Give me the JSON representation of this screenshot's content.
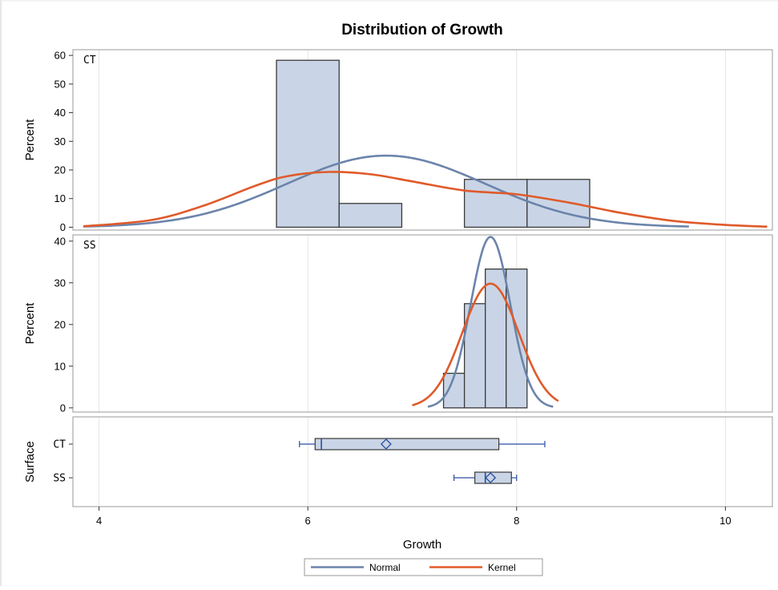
{
  "chart_data": {
    "type": "histogram",
    "title": "Distribution of Growth",
    "xlabel": "Growth",
    "xlim": [
      3.75,
      10.45
    ],
    "x_ticks": [
      4,
      6,
      8,
      10
    ],
    "grid": true,
    "colors": {
      "bar_fill": "#c9d5e6",
      "bar_stroke": "#3a3a3a",
      "normal": "#6b84ab",
      "kernel": "#e05a2a",
      "box_whisker": "#2a4fa0",
      "grid": "#e4e4e4",
      "frame": "#9a9a9a"
    },
    "panels": [
      {
        "label": "CT",
        "ylabel": "Percent",
        "ylim": [
          -1,
          62
        ],
        "y_ticks": [
          0,
          10,
          20,
          30,
          40,
          50,
          60
        ],
        "bins": [
          {
            "x0": 5.7,
            "x1": 6.3,
            "percent": 58.3
          },
          {
            "x0": 6.3,
            "x1": 6.9,
            "percent": 8.3
          },
          {
            "x0": 6.9,
            "x1": 7.5,
            "percent": 0
          },
          {
            "x0": 7.5,
            "x1": 8.1,
            "percent": 16.7
          },
          {
            "x0": 8.1,
            "x1": 8.7,
            "percent": 16.7
          }
        ],
        "normal": {
          "mean": 6.75,
          "peak": 25,
          "sd": 0.95,
          "x_range": [
            3.85,
            9.65
          ]
        },
        "kernel": {
          "x": [
            3.85,
            4.5,
            5.0,
            5.5,
            5.8,
            6.2,
            6.6,
            7.0,
            7.5,
            8.0,
            8.5,
            9.0,
            9.5,
            10.0,
            10.4
          ],
          "y": [
            0.3,
            2.5,
            7.5,
            14.5,
            17.8,
            19.3,
            18.5,
            16.0,
            12.8,
            11.5,
            8.6,
            5.0,
            2.2,
            0.8,
            0.2
          ]
        }
      },
      {
        "label": "SS",
        "ylabel": "Percent",
        "ylim": [
          -1,
          41.5
        ],
        "y_ticks": [
          0,
          10,
          20,
          30,
          40
        ],
        "bins": [
          {
            "x0": 7.3,
            "x1": 7.5,
            "percent": 8.3
          },
          {
            "x0": 7.5,
            "x1": 7.7,
            "percent": 25.0
          },
          {
            "x0": 7.7,
            "x1": 7.9,
            "percent": 33.3
          },
          {
            "x0": 7.9,
            "x1": 8.1,
            "percent": 33.3
          }
        ],
        "normal": {
          "mean": 7.75,
          "peak": 41,
          "sd": 0.19,
          "x_range": [
            7.15,
            8.35
          ]
        },
        "kernel": {
          "mean": 7.75,
          "peak": 29.8,
          "sd": 0.27,
          "x_range": [
            7.0,
            8.4
          ]
        }
      }
    ],
    "box_panel": {
      "ylabel": "Surface",
      "categories": [
        {
          "label": "CT",
          "min": 5.92,
          "q1": 6.07,
          "median": 6.13,
          "mean": 6.75,
          "q3": 7.83,
          "max": 8.27
        },
        {
          "label": "SS",
          "min": 7.4,
          "q1": 7.6,
          "median": 7.7,
          "mean": 7.75,
          "q3": 7.95,
          "max": 8.0
        }
      ]
    },
    "legend": {
      "position": "bottom",
      "entries": [
        "Normal",
        "Kernel"
      ]
    }
  }
}
